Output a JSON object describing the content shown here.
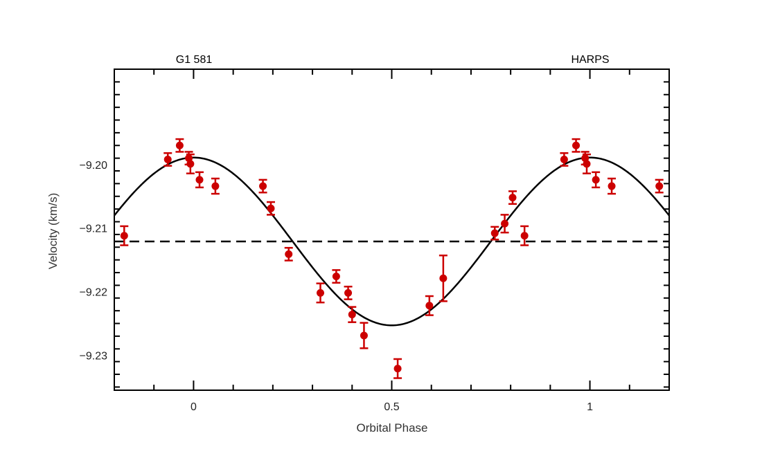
{
  "chart_data": {
    "type": "scatter",
    "top_left_label": "G1 581",
    "top_right_label": "HARPS",
    "xlabel": "Orbital Phase",
    "ylabel": "Velocity (km/s)",
    "xlim": [
      -0.2,
      1.2
    ],
    "ylim": [
      -9.2355,
      -9.185
    ],
    "x_ticks": [
      0,
      0.5,
      1
    ],
    "x_tick_labels": [
      "0",
      "0.5",
      "1"
    ],
    "y_ticks": [
      -9.2,
      -9.21,
      -9.22,
      -9.23
    ],
    "y_tick_labels": [
      "−9.20",
      "−9.21",
      "−9.22",
      "−9.23"
    ],
    "colors": {
      "points": "#cc0000",
      "model": "#000000",
      "mean": "#000000"
    },
    "model_curve": {
      "type": "sinusoid",
      "mean": -9.2121,
      "amplitude": 0.0132,
      "peak_phase": 0.0,
      "period": 1.0
    },
    "mean_line": -9.2121,
    "points": [
      {
        "x": -0.175,
        "y": -9.2112,
        "err": 0.0015
      },
      {
        "x": -0.065,
        "y": -9.1992,
        "err": 0.001
      },
      {
        "x": -0.035,
        "y": -9.197,
        "err": 0.001
      },
      {
        "x": -0.012,
        "y": -9.199,
        "err": 0.001
      },
      {
        "x": -0.008,
        "y": -9.1999,
        "err": 0.0015
      },
      {
        "x": 0.015,
        "y": -9.2024,
        "err": 0.0012
      },
      {
        "x": 0.055,
        "y": -9.2034,
        "err": 0.0012
      },
      {
        "x": 0.175,
        "y": -9.2034,
        "err": 0.001
      },
      {
        "x": 0.195,
        "y": -9.2069,
        "err": 0.001
      },
      {
        "x": 0.24,
        "y": -9.2141,
        "err": 0.001
      },
      {
        "x": 0.32,
        "y": -9.2202,
        "err": 0.0015
      },
      {
        "x": 0.36,
        "y": -9.2176,
        "err": 0.001
      },
      {
        "x": 0.39,
        "y": -9.2202,
        "err": 0.001
      },
      {
        "x": 0.4,
        "y": -9.2236,
        "err": 0.0012
      },
      {
        "x": 0.43,
        "y": -9.2269,
        "err": 0.002
      },
      {
        "x": 0.515,
        "y": -9.2321,
        "err": 0.0015
      },
      {
        "x": 0.595,
        "y": -9.2222,
        "err": 0.0015
      },
      {
        "x": 0.63,
        "y": -9.2179,
        "err": 0.0036
      },
      {
        "x": 0.76,
        "y": -9.2108,
        "err": 0.001
      },
      {
        "x": 0.785,
        "y": -9.2093,
        "err": 0.0014
      },
      {
        "x": 0.805,
        "y": -9.2052,
        "err": 0.001
      },
      {
        "x": 0.835,
        "y": -9.2112,
        "err": 0.0015
      },
      {
        "x": 0.935,
        "y": -9.1992,
        "err": 0.001
      },
      {
        "x": 0.965,
        "y": -9.197,
        "err": 0.001
      },
      {
        "x": 0.988,
        "y": -9.199,
        "err": 0.001
      },
      {
        "x": 0.992,
        "y": -9.1999,
        "err": 0.0015
      },
      {
        "x": 1.015,
        "y": -9.2024,
        "err": 0.0012
      },
      {
        "x": 1.055,
        "y": -9.2034,
        "err": 0.0012
      },
      {
        "x": 1.175,
        "y": -9.2034,
        "err": 0.001
      }
    ]
  }
}
